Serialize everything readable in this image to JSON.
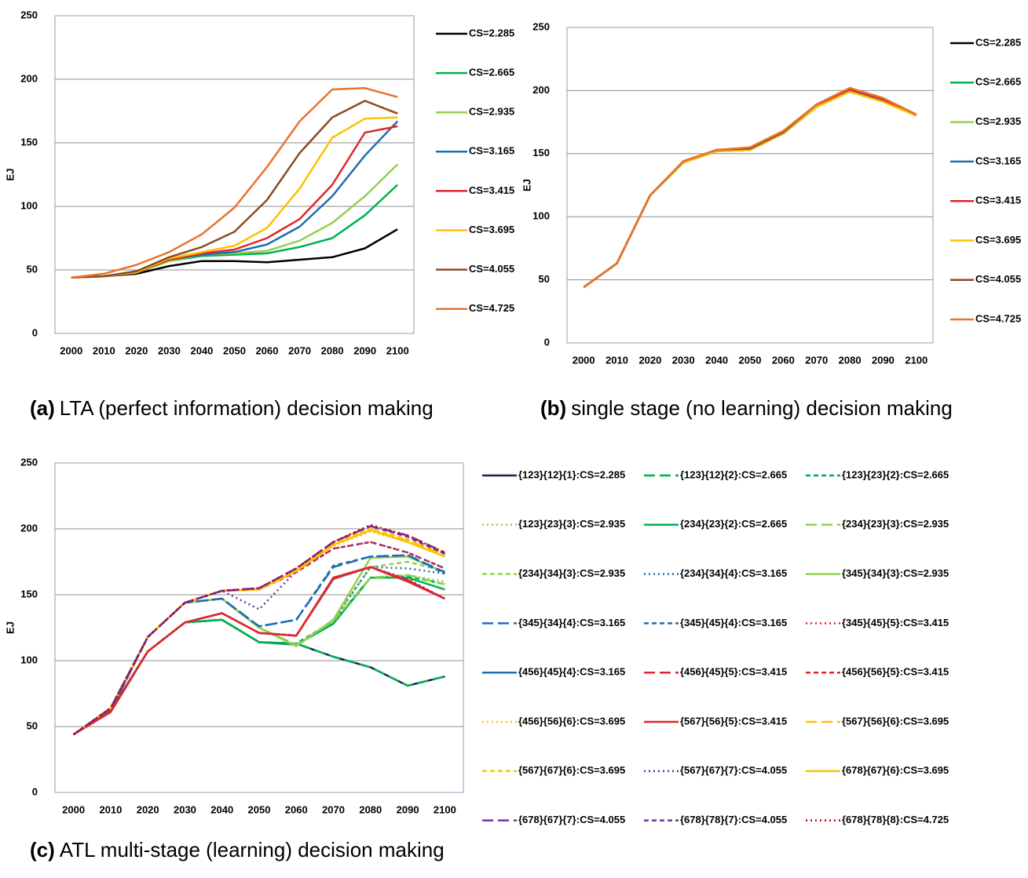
{
  "chart_data": [
    {
      "type": "line",
      "caption_label": "(a)",
      "caption": "LTA (perfect information) decision making",
      "ylabel": "EJ",
      "categories": [
        "2000",
        "2010",
        "2020",
        "2030",
        "2040",
        "2050",
        "2060",
        "2070",
        "2080",
        "2090",
        "2100"
      ],
      "ylim": [
        0,
        250
      ],
      "yticks": [
        0,
        50,
        100,
        150,
        200,
        250
      ],
      "grid": true,
      "series": [
        {
          "name": "CS=2.285",
          "color": "#000000",
          "values": [
            44,
            45,
            47,
            53,
            57,
            57,
            56,
            58,
            60,
            67,
            82
          ]
        },
        {
          "name": "CS=2.665",
          "color": "#00b050",
          "values": [
            44,
            45,
            48,
            57,
            61,
            62,
            63,
            68,
            75,
            93,
            117
          ]
        },
        {
          "name": "CS=2.935",
          "color": "#92d050",
          "values": [
            44,
            45,
            48,
            57,
            62,
            63,
            65,
            73,
            87,
            108,
            133
          ]
        },
        {
          "name": "CS=3.165",
          "color": "#1f6cb4",
          "values": [
            44,
            45,
            48,
            58,
            62,
            64,
            70,
            84,
            108,
            140,
            167
          ]
        },
        {
          "name": "CS=3.415",
          "color": "#e0262a",
          "values": [
            44,
            45,
            48,
            58,
            63,
            66,
            75,
            90,
            117,
            158,
            163
          ]
        },
        {
          "name": "CS=3.695",
          "color": "#ffc000",
          "values": [
            44,
            45,
            48,
            59,
            64,
            69,
            83,
            114,
            154,
            169,
            170
          ]
        },
        {
          "name": "CS=4.055",
          "color": "#8b4b26",
          "values": [
            44,
            45,
            49,
            60,
            68,
            80,
            105,
            142,
            170,
            183,
            173
          ]
        },
        {
          "name": "CS=4.725",
          "color": "#e8742c",
          "values": [
            44,
            47,
            54,
            64,
            78,
            99,
            131,
            167,
            192,
            193,
            186
          ]
        }
      ]
    },
    {
      "type": "line",
      "caption_label": "(b)",
      "caption": "single stage (no learning) decision making",
      "ylabel": "EJ",
      "categories": [
        "2000",
        "2010",
        "2020",
        "2030",
        "2040",
        "2050",
        "2060",
        "2070",
        "2080",
        "2090",
        "2100"
      ],
      "ylim": [
        0,
        250
      ],
      "yticks": [
        0,
        50,
        100,
        150,
        200,
        250
      ],
      "grid": true,
      "series": [
        {
          "name": "CS=2.285",
          "color": "#000000",
          "values": [
            44,
            63,
            117,
            143,
            152,
            153,
            166,
            187,
            200,
            192,
            181
          ]
        },
        {
          "name": "CS=2.665",
          "color": "#00b050",
          "values": [
            44,
            63,
            117,
            143,
            152,
            153,
            166,
            187,
            200,
            192,
            181
          ]
        },
        {
          "name": "CS=2.935",
          "color": "#92d050",
          "values": [
            44,
            63,
            117,
            143,
            152,
            153,
            166,
            187,
            200,
            192,
            181
          ]
        },
        {
          "name": "CS=3.165",
          "color": "#1f6cb4",
          "values": [
            44,
            63,
            117,
            143,
            152,
            153,
            166,
            187,
            200,
            192,
            181
          ]
        },
        {
          "name": "CS=3.415",
          "color": "#e0262a",
          "values": [
            44,
            63,
            117,
            144,
            153,
            154,
            167,
            188,
            201,
            193,
            181
          ]
        },
        {
          "name": "CS=3.695",
          "color": "#ffc000",
          "values": [
            44,
            63,
            117,
            143,
            152,
            153,
            166,
            187,
            199,
            191,
            180
          ]
        },
        {
          "name": "CS=4.055",
          "color": "#8b4b26",
          "values": [
            44,
            63,
            117,
            144,
            153,
            154,
            167,
            189,
            202,
            194,
            181
          ]
        },
        {
          "name": "CS=4.725",
          "color": "#e8742c",
          "values": [
            44,
            63,
            117,
            144,
            153,
            155,
            168,
            189,
            202,
            194,
            181
          ]
        }
      ]
    },
    {
      "type": "line",
      "caption_label": "(c)",
      "caption": "ATL multi-stage (learning) decision making",
      "ylabel": "EJ",
      "categories": [
        "2000",
        "2010",
        "2020",
        "2030",
        "2040",
        "2050",
        "2060",
        "2070",
        "2080",
        "2090",
        "2100"
      ],
      "ylim": [
        0,
        250
      ],
      "yticks": [
        0,
        50,
        100,
        150,
        200,
        250
      ],
      "grid": true,
      "series": [
        {
          "name": "{123}{12}{1}:CS=2.285",
          "color": "#1f1f5a",
          "dash": "solid",
          "values": [
            44,
            62,
            107,
            129,
            131,
            114,
            113,
            103,
            95,
            81,
            88
          ]
        },
        {
          "name": "{123}{12}{2}:CS=2.665",
          "color": "#00b050",
          "dash": "long",
          "values": [
            44,
            62,
            107,
            129,
            131,
            114,
            113,
            103,
            95,
            81,
            88
          ]
        },
        {
          "name": "{123}{23}{2}:CS=2.665",
          "color": "#00b050",
          "dash": "short",
          "values": [
            44,
            62,
            107,
            129,
            131,
            114,
            113,
            130,
            163,
            164,
            158
          ]
        },
        {
          "name": "{123}{23}{3}:CS=2.935",
          "color": "#92d050",
          "dash": "dot",
          "values": [
            44,
            62,
            107,
            129,
            131,
            114,
            112,
            129,
            163,
            165,
            160
          ]
        },
        {
          "name": "{234}{23}{2}:CS=2.665",
          "color": "#00b050",
          "dash": "solid",
          "values": [
            44,
            62,
            107,
            129,
            131,
            114,
            112,
            128,
            163,
            163,
            154
          ]
        },
        {
          "name": "{234}{23}{3}:CS=2.935",
          "color": "#92d050",
          "dash": "long",
          "values": [
            44,
            62,
            118,
            144,
            147,
            125,
            112,
            130,
            163,
            165,
            158
          ]
        },
        {
          "name": "{234}{34}{3}:CS=2.935",
          "color": "#92d050",
          "dash": "short",
          "values": [
            44,
            62,
            118,
            144,
            147,
            125,
            111,
            131,
            171,
            175,
            168
          ]
        },
        {
          "name": "{234}{34}{4}:CS=3.165",
          "color": "#1f6cb4",
          "dash": "dot",
          "values": [
            44,
            62,
            118,
            144,
            147,
            125,
            111,
            131,
            171,
            170,
            166
          ]
        },
        {
          "name": "{345}{34}{3}:CS=2.935",
          "color": "#92d050",
          "dash": "solid",
          "values": [
            44,
            62,
            118,
            144,
            147,
            125,
            111,
            131,
            178,
            179,
            167
          ]
        },
        {
          "name": "{345}{34}{4}:CS=3.165",
          "color": "#1f6cb4",
          "dash": "long",
          "values": [
            44,
            62,
            118,
            144,
            147,
            126,
            131,
            171,
            179,
            180,
            167
          ]
        },
        {
          "name": "{345}{45}{4}:CS=3.165",
          "color": "#1f6cb4",
          "dash": "short",
          "values": [
            44,
            62,
            118,
            144,
            147,
            126,
            131,
            172,
            179,
            180,
            166
          ]
        },
        {
          "name": "{345}{45}{5}:CS=3.415",
          "color": "#e0262a",
          "dash": "dot",
          "values": [
            44,
            61,
            107,
            129,
            136,
            121,
            119,
            163,
            171,
            162,
            147
          ]
        },
        {
          "name": "{456}{45}{4}:CS=3.165",
          "color": "#1f6cb4",
          "dash": "solid",
          "values": [
            44,
            62,
            107,
            129,
            136,
            121,
            119,
            162,
            171,
            161,
            147
          ]
        },
        {
          "name": "{456}{45}{5}:CS=3.415",
          "color": "#e0262a",
          "dash": "long",
          "values": [
            44,
            61,
            107,
            129,
            136,
            121,
            119,
            162,
            171,
            161,
            147
          ]
        },
        {
          "name": "{456}{56}{5}:CS=3.415",
          "color": "#e0262a",
          "dash": "short",
          "values": [
            44,
            63,
            118,
            144,
            153,
            154,
            167,
            185,
            190,
            182,
            170
          ]
        },
        {
          "name": "{456}{56}{6}:CS=3.695",
          "color": "#ffc000",
          "dash": "dot",
          "values": [
            44,
            64,
            118,
            144,
            153,
            154,
            168,
            187,
            198,
            190,
            179
          ]
        },
        {
          "name": "{567}{56}{5}:CS=3.415",
          "color": "#e0262a",
          "dash": "solid",
          "values": [
            44,
            61,
            107,
            129,
            136,
            121,
            119,
            163,
            171,
            160,
            147
          ]
        },
        {
          "name": "{567}{56}{6}:CS=3.695",
          "color": "#ffc000",
          "dash": "long",
          "values": [
            44,
            64,
            118,
            144,
            153,
            154,
            168,
            188,
            199,
            191,
            180
          ]
        },
        {
          "name": "{567}{67}{6}:CS=3.695",
          "color": "#ffc000",
          "dash": "short",
          "values": [
            44,
            64,
            118,
            144,
            153,
            154,
            168,
            189,
            200,
            192,
            181
          ]
        },
        {
          "name": "{567}{67}{7}:CS=4.055",
          "color": "#7030a0",
          "dash": "dot",
          "values": [
            44,
            64,
            118,
            144,
            153,
            139,
            168,
            185,
            190,
            182,
            170
          ]
        },
        {
          "name": "{678}{67}{6}:CS=3.695",
          "color": "#ffc000",
          "dash": "solid",
          "values": [
            44,
            64,
            118,
            144,
            153,
            154,
            168,
            188,
            199,
            190,
            179
          ]
        },
        {
          "name": "{678}{67}{7}:CS=4.055",
          "color": "#7030a0",
          "dash": "long",
          "values": [
            44,
            64,
            118,
            144,
            153,
            155,
            170,
            190,
            202,
            195,
            182
          ]
        },
        {
          "name": "{678}{78}{7}:CS=4.055",
          "color": "#7030a0",
          "dash": "short",
          "values": [
            44,
            64,
            118,
            144,
            153,
            155,
            170,
            190,
            202,
            194,
            181
          ]
        },
        {
          "name": "{678}{78}{8}:CS=4.725",
          "color": "#c00000",
          "dash": "dot",
          "values": [
            44,
            64,
            118,
            144,
            153,
            155,
            170,
            190,
            203,
            195,
            182
          ]
        }
      ]
    }
  ]
}
